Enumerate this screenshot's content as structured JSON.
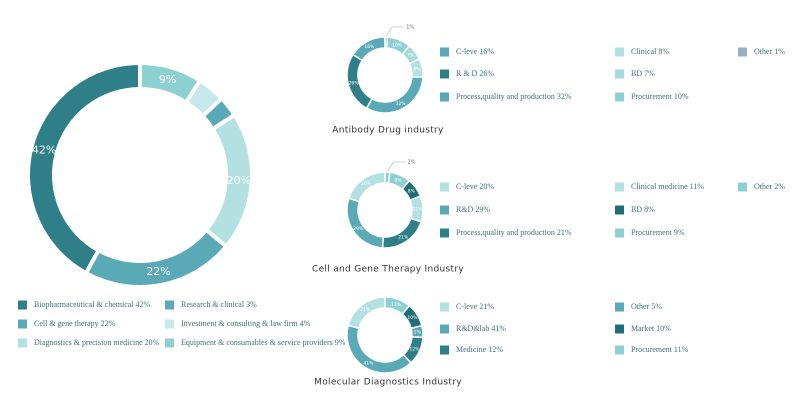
{
  "chart_data": [
    {
      "type": "pie",
      "categories": [
        "Biopharmaceutical & chemical 42%",
        "Cell & gene therapy 22%",
        "Diagnostics & precision medicine 20%",
        "Research & clinical 3%",
        "Investment & consulting & law firm 4%",
        "Equipment & consumables & service providers 9%"
      ],
      "values": [
        42,
        22,
        20,
        3,
        4,
        9
      ],
      "value_labels": [
        "42%",
        "22%",
        "20%",
        null,
        null,
        "9%"
      ],
      "colors": [
        "#2f7f88",
        "#5aa9b6",
        "#b3e0e1",
        "#5aa9b6",
        "#c6e8ea",
        "#8dd0d2"
      ]
    },
    {
      "type": "pie",
      "title": "Antibody Drug industry",
      "categories": [
        "C-leve 16%",
        "R & D 26%",
        "Process,quality and production 32%",
        "Clinical 8%",
        "BD 7%",
        "Procurement 10%",
        "Other 1%"
      ],
      "values": [
        16,
        26,
        32,
        8,
        7,
        10,
        1
      ],
      "value_labels": [
        "16%",
        "26%",
        "32%",
        "8%",
        "7%",
        "10%",
        "1%"
      ],
      "colors": [
        "#5aa9b6",
        "#2f7f88",
        "#5aa9b6",
        "#b3e0e1",
        "#a6dada",
        "#8dd0d2",
        "#9aaec2"
      ]
    },
    {
      "type": "pie",
      "title": "Cell and Gene Therapy Industry",
      "categories": [
        "C-leve 20%",
        "R&D 29%",
        "Process,quality and production 21%",
        "Clinical medicine 11%",
        "BD 8%",
        "Procurement 9%",
        "Other 2%"
      ],
      "values": [
        20,
        29,
        21,
        11,
        8,
        9,
        2
      ],
      "value_labels": [
        "20%",
        "29%",
        "21%",
        "11%",
        "8%",
        "9%",
        "2%"
      ],
      "colors": [
        "#b3e0e1",
        "#5aa9b6",
        "#2f7f88",
        "#b3e0e1",
        "#1f6d76",
        "#8dd0d2",
        "#8dd0d2"
      ]
    },
    {
      "type": "pie",
      "title": "Molecular Diagnostics Industry",
      "categories": [
        "C-leve 21%",
        "R&D&lab 41%",
        "Medicine 12%",
        "Other 5%",
        "Market 10%",
        "Procurement 11%"
      ],
      "values": [
        21,
        41,
        12,
        5,
        10,
        11
      ],
      "value_labels": [
        "21%",
        "41%",
        "12%",
        "5%",
        "10%",
        "11%"
      ],
      "colors": [
        "#b3e0e1",
        "#5aa9b6",
        "#2f7f88",
        "#5aa9b6",
        "#1f6d76",
        "#8dd0d2"
      ]
    }
  ]
}
